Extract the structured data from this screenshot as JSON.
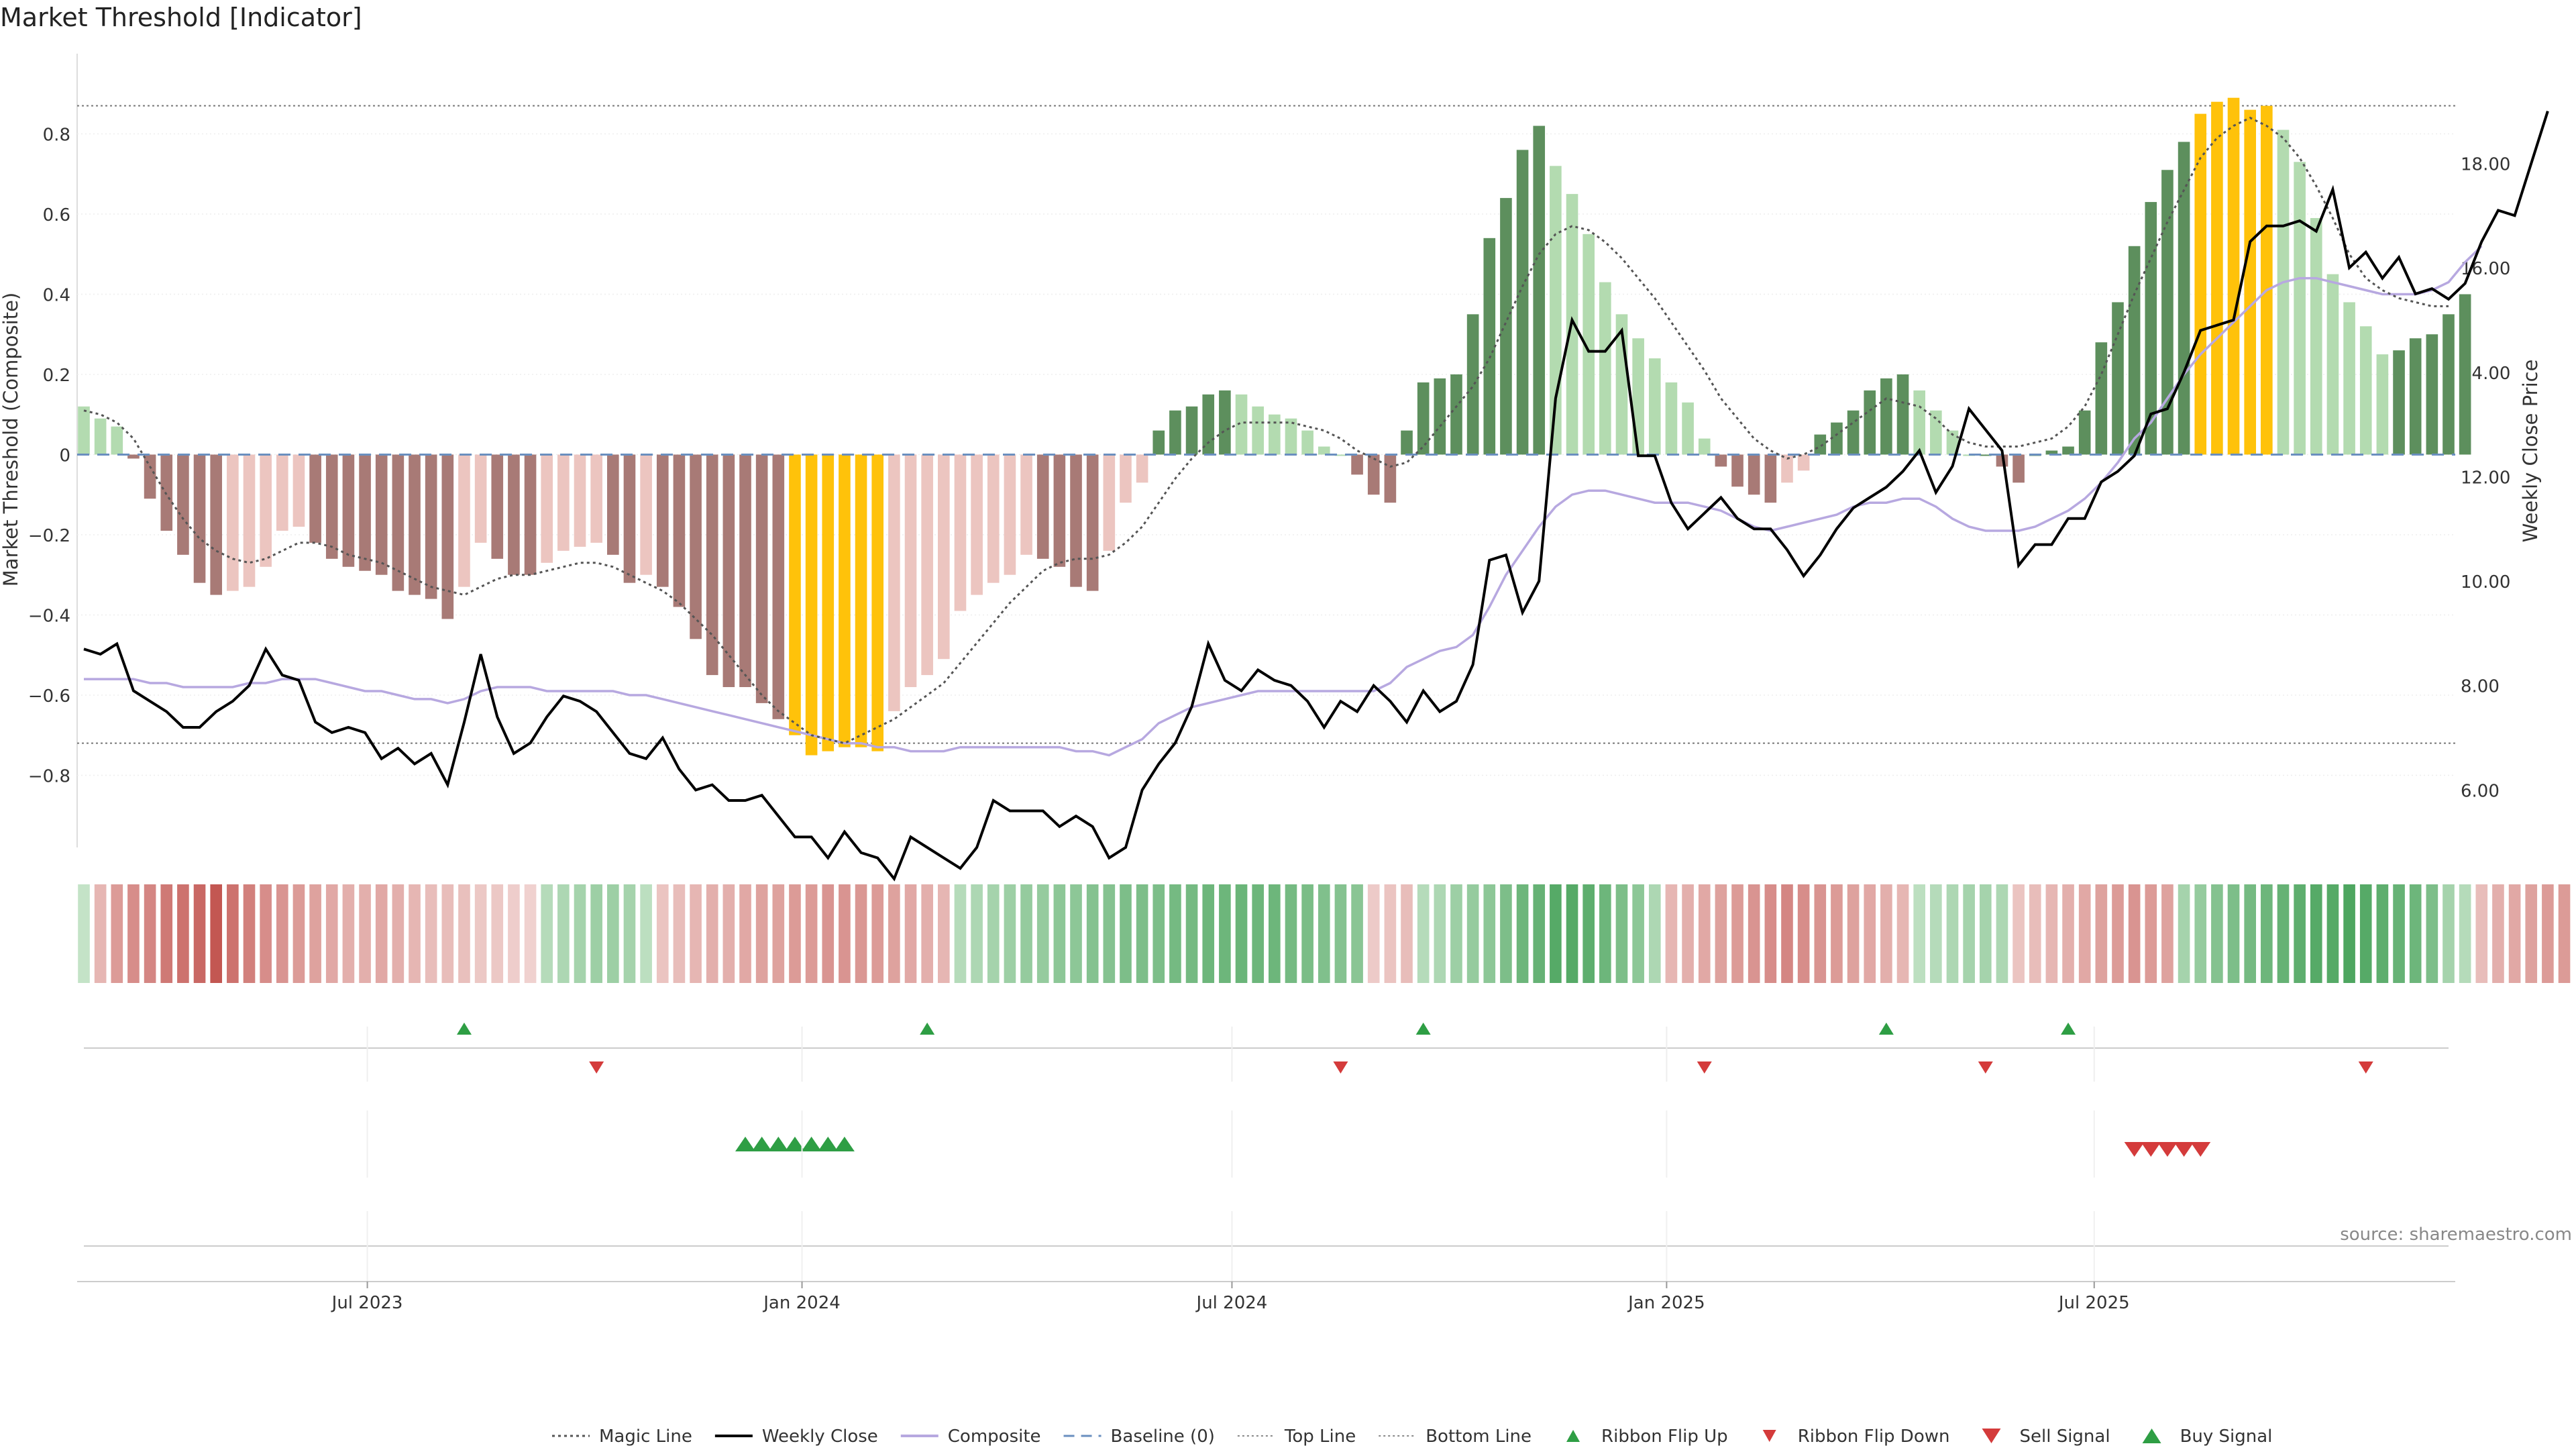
{
  "chart_data": {
    "type": "bar",
    "title": "Market Threshold [Indicator]",
    "ylabel": "Market Threshold (Composite)",
    "y2label": "Weekly Close Price",
    "ylim": [
      -0.98,
      1.0
    ],
    "y2lim": [
      4.9,
      20.1
    ],
    "yticks": [
      -0.8,
      -0.6,
      -0.4,
      -0.2,
      0,
      0.2,
      0.4,
      0.6,
      0.8
    ],
    "ytick_labels": [
      "−0.8",
      "−0.6",
      "−0.4",
      "−0.2",
      "0",
      "0.2",
      "0.4",
      "0.6",
      "0.8"
    ],
    "y2ticks": [
      6,
      8,
      10,
      12,
      14,
      16,
      18
    ],
    "y2tick_labels": [
      "6.00",
      "8.00",
      "10.00",
      "12.00",
      "14.00",
      "16.00",
      "18.00"
    ],
    "x_start": "2023-03-03",
    "x_step_days": 7,
    "x_end": "2025-11-28",
    "xticks": [
      "2023-07-01",
      "2024-01-01",
      "2024-07-01",
      "2025-01-01",
      "2025-07-01"
    ],
    "xtick_labels": [
      "Jul 2023",
      "Jan 2024",
      "Jul 2024",
      "Jan 2025",
      "Jul 2025"
    ],
    "top_line": 0.87,
    "bottom_line": -0.72,
    "baseline": 0,
    "source_text": "source: sharemaestro.com",
    "composite": [
      0.12,
      0.09,
      0.07,
      -0.01,
      -0.11,
      -0.19,
      -0.25,
      -0.32,
      -0.35,
      -0.34,
      -0.33,
      -0.28,
      -0.19,
      -0.18,
      -0.22,
      -0.26,
      -0.28,
      -0.29,
      -0.3,
      -0.34,
      -0.35,
      -0.36,
      -0.41,
      -0.33,
      -0.22,
      -0.26,
      -0.3,
      -0.3,
      -0.27,
      -0.24,
      -0.23,
      -0.22,
      -0.25,
      -0.32,
      -0.3,
      -0.33,
      -0.38,
      -0.46,
      -0.55,
      -0.58,
      -0.58,
      -0.62,
      -0.66,
      -0.7,
      -0.75,
      -0.74,
      -0.73,
      -0.73,
      -0.74,
      -0.64,
      -0.58,
      -0.55,
      -0.51,
      -0.39,
      -0.35,
      -0.32,
      -0.3,
      -0.25,
      -0.26,
      -0.28,
      -0.33,
      -0.34,
      -0.24,
      -0.12,
      -0.07,
      0.06,
      0.11,
      0.12,
      0.15,
      0.16,
      0.15,
      0.12,
      0.1,
      0.09,
      0.06,
      0.02,
      0.0,
      -0.05,
      -0.1,
      -0.12,
      0.06,
      0.18,
      0.19,
      0.2,
      0.35,
      0.54,
      0.64,
      0.76,
      0.82,
      0.72,
      0.65,
      0.55,
      0.43,
      0.35,
      0.29,
      0.24,
      0.18,
      0.13,
      0.04,
      -0.03,
      -0.08,
      -0.1,
      -0.12,
      -0.07,
      -0.04,
      0.05,
      0.08,
      0.11,
      0.16,
      0.19,
      0.2,
      0.16,
      0.11,
      0.06,
      0.0,
      0.0,
      -0.03,
      -0.07,
      0.0,
      0.01,
      0.02,
      0.11,
      0.28,
      0.38,
      0.52,
      0.63,
      0.71,
      0.78,
      0.85,
      0.88,
      0.89,
      0.86,
      0.87,
      0.81,
      0.73,
      0.59,
      0.45,
      0.38,
      0.32,
      0.25,
      0.26,
      0.29,
      0.3,
      0.35,
      0.4
    ],
    "magic_line": [
      0.11,
      0.1,
      0.08,
      0.04,
      -0.03,
      -0.1,
      -0.16,
      -0.21,
      -0.24,
      -0.26,
      -0.27,
      -0.26,
      -0.24,
      -0.22,
      -0.22,
      -0.23,
      -0.25,
      -0.26,
      -0.27,
      -0.29,
      -0.31,
      -0.33,
      -0.34,
      -0.35,
      -0.33,
      -0.31,
      -0.3,
      -0.3,
      -0.29,
      -0.28,
      -0.27,
      -0.27,
      -0.28,
      -0.3,
      -0.32,
      -0.34,
      -0.37,
      -0.41,
      -0.45,
      -0.5,
      -0.55,
      -0.6,
      -0.64,
      -0.67,
      -0.7,
      -0.71,
      -0.72,
      -0.7,
      -0.68,
      -0.66,
      -0.63,
      -0.6,
      -0.57,
      -0.52,
      -0.47,
      -0.42,
      -0.37,
      -0.33,
      -0.29,
      -0.27,
      -0.26,
      -0.26,
      -0.25,
      -0.22,
      -0.18,
      -0.12,
      -0.06,
      -0.01,
      0.03,
      0.06,
      0.08,
      0.08,
      0.08,
      0.08,
      0.07,
      0.06,
      0.04,
      0.01,
      -0.01,
      -0.03,
      -0.02,
      0.02,
      0.07,
      0.12,
      0.17,
      0.24,
      0.33,
      0.42,
      0.5,
      0.55,
      0.57,
      0.56,
      0.53,
      0.49,
      0.44,
      0.39,
      0.33,
      0.27,
      0.21,
      0.14,
      0.09,
      0.04,
      0.01,
      -0.01,
      0.0,
      0.02,
      0.05,
      0.08,
      0.11,
      0.14,
      0.13,
      0.12,
      0.09,
      0.05,
      0.03,
      0.02,
      0.02,
      0.02,
      0.03,
      0.04,
      0.07,
      0.12,
      0.2,
      0.3,
      0.4,
      0.49,
      0.58,
      0.66,
      0.74,
      0.79,
      0.82,
      0.84,
      0.82,
      0.79,
      0.74,
      0.67,
      0.59,
      0.5,
      0.44,
      0.41,
      0.39,
      0.38,
      0.37,
      0.37
    ],
    "composite_line": [
      -0.56,
      -0.56,
      -0.56,
      -0.56,
      -0.57,
      -0.57,
      -0.58,
      -0.58,
      -0.58,
      -0.58,
      -0.57,
      -0.57,
      -0.56,
      -0.56,
      -0.56,
      -0.57,
      -0.58,
      -0.59,
      -0.59,
      -0.6,
      -0.61,
      -0.61,
      -0.62,
      -0.61,
      -0.59,
      -0.58,
      -0.58,
      -0.58,
      -0.59,
      -0.59,
      -0.59,
      -0.59,
      -0.59,
      -0.6,
      -0.6,
      -0.61,
      -0.62,
      -0.63,
      -0.64,
      -0.65,
      -0.66,
      -0.67,
      -0.68,
      -0.69,
      -0.7,
      -0.71,
      -0.72,
      -0.72,
      -0.73,
      -0.73,
      -0.74,
      -0.74,
      -0.74,
      -0.73,
      -0.73,
      -0.73,
      -0.73,
      -0.73,
      -0.73,
      -0.73,
      -0.74,
      -0.74,
      -0.75,
      -0.73,
      -0.71,
      -0.67,
      -0.65,
      -0.63,
      -0.62,
      -0.61,
      -0.6,
      -0.59,
      -0.59,
      -0.59,
      -0.59,
      -0.59,
      -0.59,
      -0.59,
      -0.59,
      -0.57,
      -0.53,
      -0.51,
      -0.49,
      -0.48,
      -0.45,
      -0.38,
      -0.3,
      -0.24,
      -0.18,
      -0.13,
      -0.1,
      -0.09,
      -0.09,
      -0.1,
      -0.11,
      -0.12,
      -0.12,
      -0.12,
      -0.13,
      -0.14,
      -0.16,
      -0.18,
      -0.19,
      -0.18,
      -0.17,
      -0.16,
      -0.15,
      -0.13,
      -0.12,
      -0.12,
      -0.11,
      -0.11,
      -0.13,
      -0.16,
      -0.18,
      -0.19,
      -0.19,
      -0.19,
      -0.18,
      -0.16,
      -0.14,
      -0.11,
      -0.07,
      -0.02,
      0.04,
      0.08,
      0.14,
      0.2,
      0.25,
      0.29,
      0.33,
      0.37,
      0.41,
      0.43,
      0.44,
      0.44,
      0.43,
      0.42,
      0.41,
      0.4,
      0.4,
      0.4,
      0.41,
      0.43,
      0.48,
      0.52
    ],
    "weekly_close": [
      8.7,
      8.6,
      8.8,
      7.9,
      7.7,
      7.5,
      7.2,
      7.2,
      7.5,
      7.7,
      8.0,
      8.7,
      8.2,
      8.1,
      7.3,
      7.1,
      7.2,
      7.1,
      6.6,
      6.8,
      6.5,
      6.7,
      6.1,
      7.3,
      8.6,
      7.4,
      6.7,
      6.9,
      7.4,
      7.8,
      7.7,
      7.5,
      7.1,
      6.7,
      6.6,
      7.0,
      6.4,
      6.0,
      6.1,
      5.8,
      5.8,
      5.9,
      5.5,
      5.1,
      5.1,
      4.7,
      5.2,
      4.8,
      4.7,
      4.3,
      5.1,
      4.9,
      4.7,
      4.5,
      4.9,
      5.8,
      5.6,
      5.6,
      5.6,
      5.3,
      5.5,
      5.3,
      4.7,
      4.9,
      6.0,
      6.5,
      6.9,
      7.6,
      8.8,
      8.1,
      7.9,
      8.3,
      8.1,
      8.0,
      7.7,
      7.2,
      7.7,
      7.5,
      8.0,
      7.7,
      7.3,
      7.9,
      7.5,
      7.7,
      8.4,
      10.4,
      10.5,
      9.4,
      10.0,
      13.5,
      15.0,
      14.4,
      14.4,
      14.8,
      12.4,
      12.4,
      11.5,
      11.0,
      11.3,
      11.6,
      11.2,
      11.0,
      11.0,
      10.6,
      10.1,
      10.5,
      11.0,
      11.4,
      11.6,
      11.8,
      12.1,
      12.5,
      11.7,
      12.2,
      13.3,
      12.9,
      12.5,
      10.3,
      10.7,
      10.7,
      11.2,
      11.2,
      11.9,
      12.1,
      12.4,
      13.2,
      13.3,
      14.0,
      14.8,
      14.9,
      15.0,
      16.5,
      16.8,
      16.8,
      16.9,
      16.7,
      17.5,
      16.0,
      16.3,
      15.8,
      16.2,
      15.5,
      15.6,
      15.4,
      15.7,
      16.5,
      17.1,
      17.0,
      18.0,
      19.0
    ],
    "ribbon": [
      0.15,
      -0.25,
      -0.45,
      -0.55,
      -0.6,
      -0.7,
      -0.75,
      -0.82,
      -0.95,
      -0.75,
      -0.65,
      -0.55,
      -0.5,
      -0.45,
      -0.4,
      -0.35,
      -0.3,
      -0.3,
      -0.35,
      -0.3,
      -0.25,
      -0.2,
      -0.2,
      -0.18,
      -0.12,
      -0.12,
      -0.08,
      -0.05,
      0.25,
      0.3,
      0.35,
      0.4,
      0.4,
      0.35,
      0.2,
      -0.15,
      -0.2,
      -0.25,
      -0.3,
      -0.3,
      -0.35,
      -0.4,
      -0.4,
      -0.45,
      -0.45,
      -0.5,
      -0.5,
      -0.48,
      -0.45,
      -0.4,
      -0.35,
      -0.3,
      -0.25,
      0.25,
      0.3,
      0.35,
      0.4,
      0.45,
      0.45,
      0.5,
      0.5,
      0.55,
      0.55,
      0.6,
      0.6,
      0.6,
      0.65,
      0.65,
      0.7,
      0.7,
      0.72,
      0.7,
      0.7,
      0.65,
      0.62,
      0.58,
      0.55,
      0.52,
      -0.1,
      -0.15,
      -0.2,
      0.25,
      0.3,
      0.4,
      0.45,
      0.5,
      0.6,
      0.7,
      0.75,
      0.85,
      0.85,
      0.8,
      0.7,
      0.6,
      0.5,
      0.3,
      -0.25,
      -0.3,
      -0.35,
      -0.4,
      -0.45,
      -0.5,
      -0.55,
      -0.6,
      -0.55,
      -0.5,
      -0.45,
      -0.4,
      -0.35,
      -0.3,
      -0.25,
      0.2,
      0.25,
      0.3,
      0.35,
      0.35,
      0.3,
      -0.15,
      -0.2,
      -0.25,
      -0.3,
      -0.35,
      -0.4,
      -0.45,
      -0.5,
      -0.45,
      -0.4,
      0.35,
      0.45,
      0.55,
      0.6,
      0.65,
      0.7,
      0.75,
      0.8,
      0.85,
      0.85,
      0.9,
      0.85,
      0.8,
      0.75,
      0.7,
      0.6,
      0.35,
      0.25,
      -0.2,
      -0.3,
      -0.35,
      -0.4,
      -0.45,
      -0.45
    ],
    "ribbon_flip_up": [
      "2023-08-11",
      "2024-02-23",
      "2024-09-20",
      "2025-04-04",
      "2025-06-20"
    ],
    "ribbon_flip_down": [
      "2023-10-06",
      "2024-08-16",
      "2025-01-17",
      "2025-05-16",
      "2025-10-24"
    ],
    "buy_signal": [
      "2023-12-08",
      "2023-12-15",
      "2023-12-22",
      "2023-12-29",
      "2024-01-05",
      "2024-01-12",
      "2024-01-19"
    ],
    "sell_signal": [
      "2025-07-18",
      "2025-07-25",
      "2025-08-01",
      "2025-08-08",
      "2025-08-15"
    ],
    "colors": {
      "strong_pos": "#5d8f5d",
      "weak_pos": "#b3dbb0",
      "strong_neg": "#a87a76",
      "weak_neg": "#ecc5c0",
      "extreme": "#ffc20a",
      "magic": "#555555",
      "close": "#000000",
      "composite_line": "#b7a8e0",
      "baseline": "#6a8fbf",
      "flip_up": "#2e9e44",
      "flip_down": "#d43b3b",
      "sell": "#d43b3b",
      "buy": "#2e9e44"
    },
    "legend_position": "bottom-center",
    "legend": [
      {
        "key": "magic",
        "label": "Magic Line",
        "style": "dotted-line"
      },
      {
        "key": "close",
        "label": "Weekly Close",
        "style": "solid-line"
      },
      {
        "key": "composite",
        "label": "Composite",
        "style": "light-line"
      },
      {
        "key": "baseline",
        "label": "Baseline (0)",
        "style": "dashed-line"
      },
      {
        "key": "top",
        "label": "Top Line",
        "style": "fine-dotted"
      },
      {
        "key": "bottom",
        "label": "Bottom Line",
        "style": "fine-dotted"
      },
      {
        "key": "flip_up",
        "label": "Ribbon Flip Up",
        "style": "triangle-up-small"
      },
      {
        "key": "flip_down",
        "label": "Ribbon Flip Down",
        "style": "triangle-down-small"
      },
      {
        "key": "sell",
        "label": "Sell Signal",
        "style": "triangle-down-large"
      },
      {
        "key": "buy",
        "label": "Buy Signal",
        "style": "triangle-up-large"
      }
    ]
  }
}
